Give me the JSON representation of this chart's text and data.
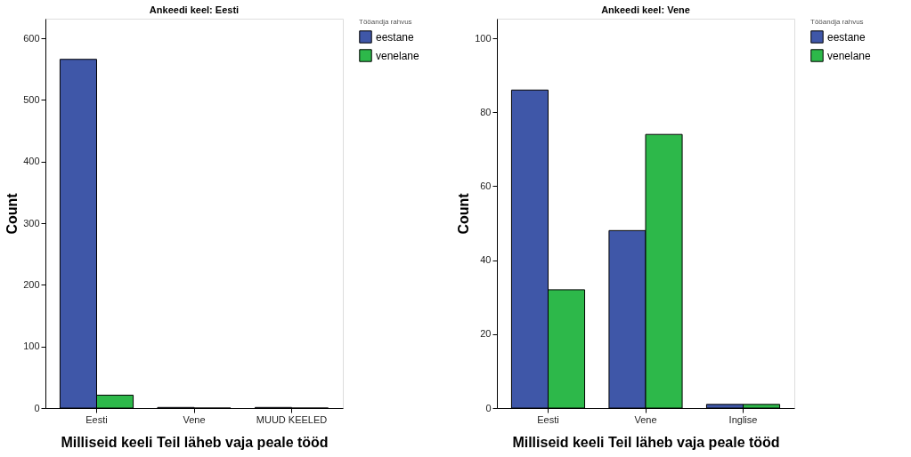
{
  "chart_data": [
    {
      "type": "bar",
      "title": "Ankeedi keel: Eesti",
      "xlabel": "Milliseid keeli Teil läheb vaja peale tööd",
      "ylabel": "Count",
      "legend_title": "Tööandja rahvus",
      "legend": "right",
      "categories": [
        "Eesti",
        "Vene",
        "MUUD KEELED"
      ],
      "series": [
        {
          "name": "eestane",
          "color": "#3f57a8",
          "values": [
            566,
            1,
            1
          ]
        },
        {
          "name": "venelane",
          "color": "#2db84a",
          "values": [
            21,
            0,
            0
          ]
        }
      ],
      "ylim": [
        0,
        632
      ],
      "yticks": [
        0,
        100,
        200,
        300,
        400,
        500,
        600
      ],
      "grid": false
    },
    {
      "type": "bar",
      "title": "Ankeedi keel: Vene",
      "xlabel": "Milliseid keeli Teil läheb vaja peale tööd",
      "ylabel": "Count",
      "legend_title": "Tööandja rahvus",
      "legend": "right",
      "categories": [
        "Eesti",
        "Vene",
        "Inglise"
      ],
      "series": [
        {
          "name": "eestane",
          "color": "#3f57a8",
          "values": [
            86,
            48,
            1
          ]
        },
        {
          "name": "venelane",
          "color": "#2db84a",
          "values": [
            32,
            74,
            1
          ]
        }
      ],
      "ylim": [
        0,
        105.3
      ],
      "yticks": [
        0,
        20,
        40,
        60,
        80,
        100
      ],
      "grid": false
    }
  ]
}
